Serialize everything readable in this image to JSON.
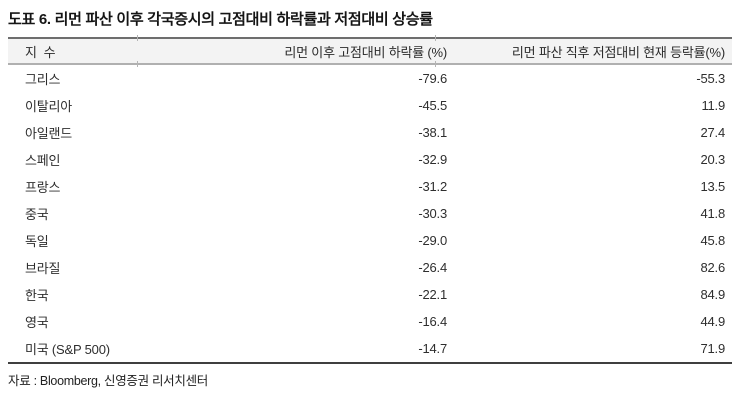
{
  "title": "도표 6. 리먼 파산 이후 각국증시의 고점대비 하락률과 저점대비 상승률",
  "table": {
    "headers": {
      "index": "지  수",
      "decline": "리먼 이후 고점대비 하락률 (%)",
      "rebound": "리먼 파산 직후 저점대비 현재 등락률(%)"
    },
    "rows": [
      {
        "name": "그리스",
        "decline": "-79.6",
        "rebound": "-55.3"
      },
      {
        "name": "이탈리아",
        "decline": "-45.5",
        "rebound": "11.9"
      },
      {
        "name": "아일랜드",
        "decline": "-38.1",
        "rebound": "27.4"
      },
      {
        "name": "스페인",
        "decline": "-32.9",
        "rebound": "20.3"
      },
      {
        "name": "프랑스",
        "decline": "-31.2",
        "rebound": "13.5"
      },
      {
        "name": "중국",
        "decline": "-30.3",
        "rebound": "41.8"
      },
      {
        "name": "독일",
        "decline": "-29.0",
        "rebound": "45.8"
      },
      {
        "name": "브라질",
        "decline": "-26.4",
        "rebound": "82.6"
      },
      {
        "name": "한국",
        "decline": "-22.1",
        "rebound": "84.9"
      },
      {
        "name": "영국",
        "decline": "-16.4",
        "rebound": "44.9"
      },
      {
        "name": "미국 (S&P 500)",
        "decline": "-14.7",
        "rebound": "71.9"
      }
    ]
  },
  "source": "자료 : Bloomberg, 신영증권 리서치센터",
  "colors": {
    "top_rule": "#6e6e6e",
    "header_rule": "#b0b0b0",
    "bottom_rule": "#3f3f3f",
    "header_bg": "#f3f3f3",
    "text": "#2e2e2e"
  }
}
